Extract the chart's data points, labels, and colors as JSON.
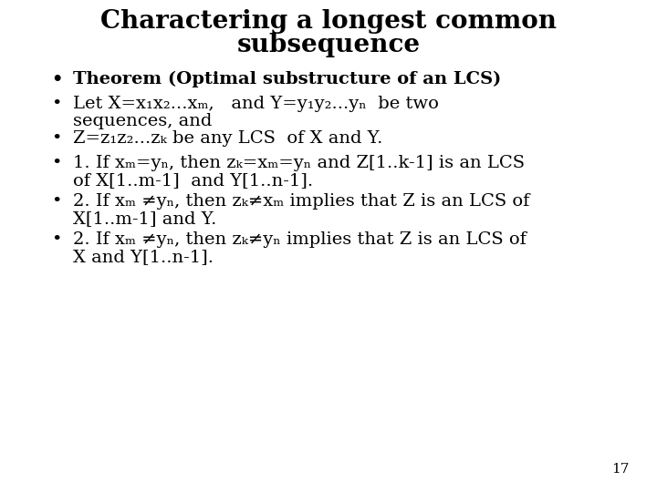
{
  "title_line1": "Charactering a longest common",
  "title_line2": "subsequence",
  "background_color": "#ffffff",
  "text_color": "#000000",
  "page_number": "17",
  "title_fontsize": 20,
  "bullet_fontsize": 14,
  "page_num_fontsize": 11
}
